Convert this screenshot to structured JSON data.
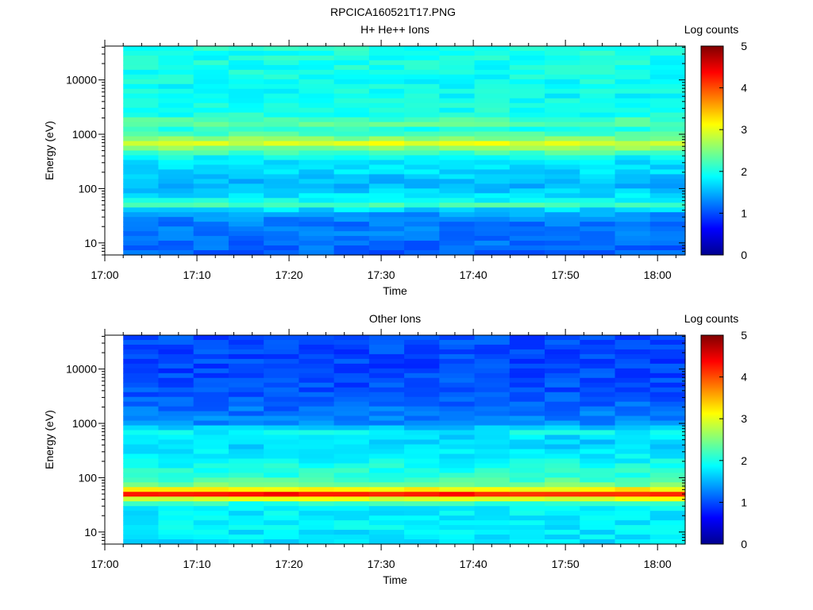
{
  "figure": {
    "title": "RPCICA160521T17.PNG"
  },
  "chart_data": [
    {
      "type": "heatmap",
      "title": "H+ He++ Ions",
      "xlabel": "Time",
      "ylabel": "Energy (eV)",
      "colorbar_label": "Log counts",
      "colorbar_ticks": [
        "0",
        "1",
        "2",
        "3",
        "4",
        "5"
      ],
      "colorbar_range": [
        0,
        5
      ],
      "y_scale": "log",
      "y_ticks": [
        "10",
        "100",
        "1000",
        "10000"
      ],
      "ylim": [
        6,
        42000
      ],
      "x_ticks": [
        "17:00",
        "17:10",
        "17:20",
        "17:30",
        "17:40",
        "17:50",
        "18:00"
      ],
      "xlim": [
        "17:00",
        "18:03"
      ],
      "data_start": "17:02",
      "data_end": "18:03",
      "time_bins": 16,
      "energy_profile": [
        {
          "energy": 7,
          "log_counts": 1.1
        },
        {
          "energy": 12,
          "log_counts": 1.2
        },
        {
          "energy": 20,
          "log_counts": 1.2
        },
        {
          "energy": 30,
          "log_counts": 1.3
        },
        {
          "energy": 38,
          "log_counts": 1.5
        },
        {
          "energy": 45,
          "log_counts": 2.0
        },
        {
          "energy": 52,
          "log_counts": 2.3
        },
        {
          "energy": 60,
          "log_counts": 1.9
        },
        {
          "energy": 80,
          "log_counts": 1.7
        },
        {
          "energy": 120,
          "log_counts": 1.5
        },
        {
          "energy": 200,
          "log_counts": 1.7
        },
        {
          "energy": 350,
          "log_counts": 1.8
        },
        {
          "energy": 550,
          "log_counts": 2.5
        },
        {
          "energy": 700,
          "log_counts": 3.0
        },
        {
          "energy": 900,
          "log_counts": 2.3
        },
        {
          "energy": 1300,
          "log_counts": 2.0
        },
        {
          "energy": 1600,
          "log_counts": 2.4
        },
        {
          "energy": 2200,
          "log_counts": 2.0
        },
        {
          "energy": 5000,
          "log_counts": 1.9
        },
        {
          "energy": 12000,
          "log_counts": 1.95
        },
        {
          "energy": 40000,
          "log_counts": 2.0
        }
      ],
      "colors": {
        "cmap": "jet"
      }
    },
    {
      "type": "heatmap",
      "title": "Other Ions",
      "xlabel": "Time",
      "ylabel": "Energy (eV)",
      "colorbar_label": "Log counts",
      "colorbar_ticks": [
        "0",
        "1",
        "2",
        "3",
        "4",
        "5"
      ],
      "colorbar_range": [
        0,
        5
      ],
      "y_scale": "log",
      "y_ticks": [
        "10",
        "100",
        "1000",
        "10000"
      ],
      "ylim": [
        6,
        42000
      ],
      "x_ticks": [
        "17:00",
        "17:10",
        "17:20",
        "17:30",
        "17:40",
        "17:50",
        "18:00"
      ],
      "xlim": [
        "17:00",
        "18:03"
      ],
      "data_start": "17:02",
      "data_end": "18:03",
      "time_bins": 16,
      "energy_profile": [
        {
          "energy": 7,
          "log_counts": 1.75
        },
        {
          "energy": 12,
          "log_counts": 1.8
        },
        {
          "energy": 20,
          "log_counts": 1.8
        },
        {
          "energy": 30,
          "log_counts": 1.9
        },
        {
          "energy": 38,
          "log_counts": 2.3
        },
        {
          "energy": 43,
          "log_counts": 3.6
        },
        {
          "energy": 50,
          "log_counts": 4.3
        },
        {
          "energy": 58,
          "log_counts": 3.4
        },
        {
          "energy": 70,
          "log_counts": 2.5
        },
        {
          "energy": 100,
          "log_counts": 2.1
        },
        {
          "energy": 200,
          "log_counts": 1.9
        },
        {
          "energy": 350,
          "log_counts": 1.7
        },
        {
          "energy": 500,
          "log_counts": 1.65
        },
        {
          "energy": 700,
          "log_counts": 1.9
        },
        {
          "energy": 1000,
          "log_counts": 1.3
        },
        {
          "energy": 3000,
          "log_counts": 1.05
        },
        {
          "energy": 10000,
          "log_counts": 0.95
        },
        {
          "energy": 40000,
          "log_counts": 1.0
        }
      ],
      "colors": {
        "cmap": "jet"
      }
    }
  ]
}
